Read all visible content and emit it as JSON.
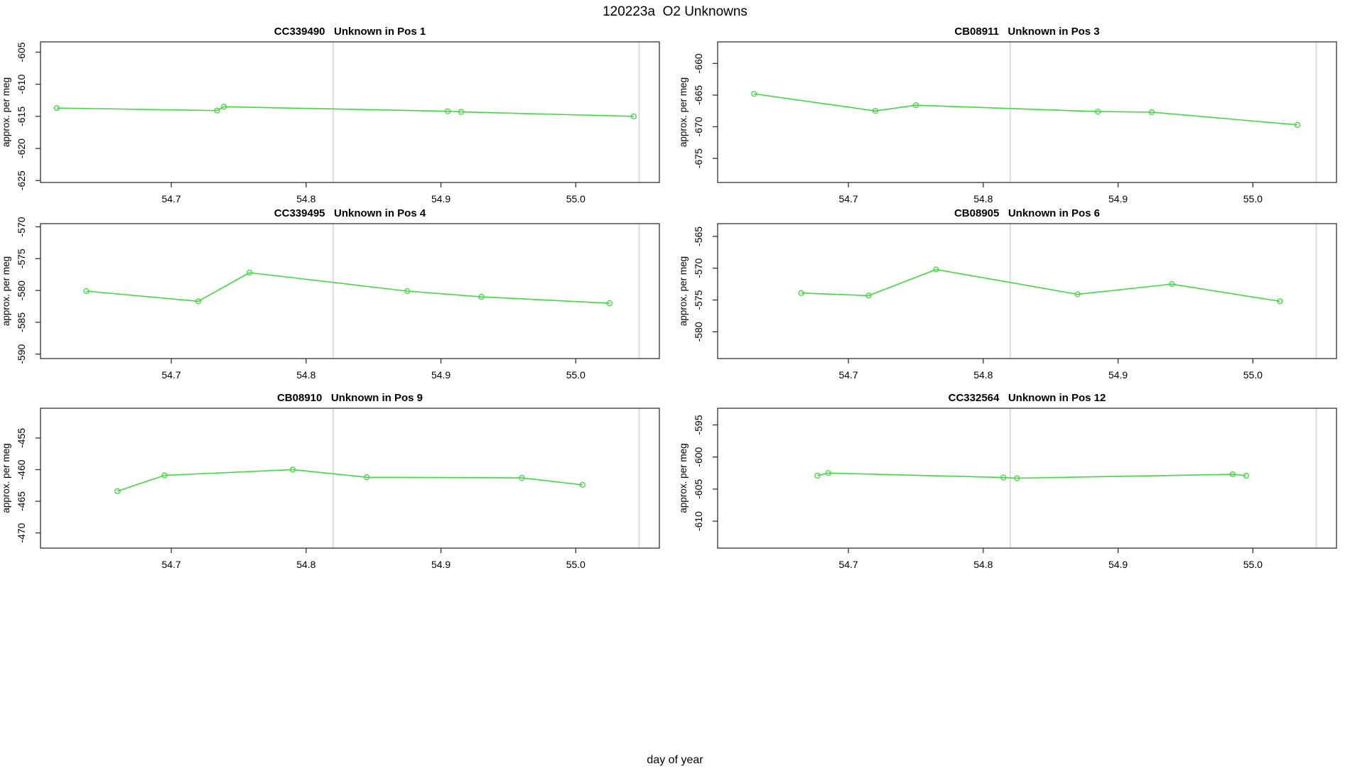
{
  "figure": {
    "title": "120223a  O2 Unknowns",
    "x_axis_label": "day of year",
    "background_color": "#ffffff",
    "series_color": "#3ddb3d",
    "reference_line_color": "#dbdbdb",
    "axis_color": "#333333",
    "text_color": "#000000"
  },
  "axes_shared": {
    "xlim": [
      54.603,
      55.062
    ],
    "xticks": [
      "54.7",
      "54.8",
      "54.9",
      "55.0"
    ],
    "xtick_values": [
      54.7,
      54.8,
      54.9,
      55.0
    ],
    "reference_vlines": [
      54.82,
      55.047
    ],
    "ylabel": "approx. per meg",
    "grid": false,
    "legend": "none",
    "marker": "open-circle"
  },
  "chart_data": [
    {
      "type": "line",
      "title": "CC339490   Unknown in Pos 1",
      "sample_id": "CC339490",
      "position_label": "Unknown in Pos 1",
      "x": [
        54.615,
        54.734,
        54.739,
        54.905,
        54.915,
        55.043
      ],
      "y": [
        -613.7,
        -614.1,
        -613.5,
        -614.2,
        -614.3,
        -615.0
      ],
      "ylim": [
        -625.3,
        -603.4
      ],
      "yticks": [
        -625,
        -620,
        -615,
        -610,
        -605
      ]
    },
    {
      "type": "line",
      "title": "CB08911   Unknown in Pos 3",
      "sample_id": "CB08911",
      "position_label": "Unknown in Pos 3",
      "x": [
        54.63,
        54.72,
        54.75,
        54.885,
        54.925,
        55.033
      ],
      "y": [
        -664.8,
        -667.5,
        -666.6,
        -667.6,
        -667.7,
        -669.7
      ],
      "ylim": [
        -678.8,
        -656.6
      ],
      "yticks": [
        -675,
        -670,
        -665,
        -660
      ]
    },
    {
      "type": "line",
      "title": "CC339495   Unknown in Pos 4",
      "sample_id": "CC339495",
      "position_label": "Unknown in Pos 4",
      "x": [
        54.637,
        54.72,
        54.758,
        54.875,
        54.93,
        55.025
      ],
      "y": [
        -580.1,
        -581.7,
        -577.2,
        -580.1,
        -581.0,
        -582.0
      ],
      "ylim": [
        -590.7,
        -569.5
      ],
      "yticks": [
        -590,
        -585,
        -580,
        -575,
        -570
      ]
    },
    {
      "type": "line",
      "title": "CB08905   Unknown in Pos 6",
      "sample_id": "CB08905",
      "position_label": "Unknown in Pos 6",
      "x": [
        54.665,
        54.715,
        54.765,
        54.87,
        54.94,
        55.02
      ],
      "y": [
        -573.9,
        -574.3,
        -570.2,
        -574.1,
        -572.5,
        -575.2
      ],
      "ylim": [
        -584.2,
        -563.0
      ],
      "yticks": [
        -580,
        -575,
        -570,
        -565
      ]
    },
    {
      "type": "line",
      "title": "CB08910   Unknown in Pos 9",
      "sample_id": "CB08910",
      "position_label": "Unknown in Pos 9",
      "x": [
        54.66,
        54.695,
        54.79,
        54.845,
        54.96,
        55.005
      ],
      "y": [
        -463.4,
        -460.9,
        -460.0,
        -461.2,
        -461.3,
        -462.4
      ],
      "ylim": [
        -472.4,
        -450.3
      ],
      "yticks": [
        -470,
        -465,
        -460,
        -455
      ]
    },
    {
      "type": "line",
      "title": "CC332564   Unknown in Pos 12",
      "sample_id": "CC332564",
      "position_label": "Unknown in Pos 12",
      "x": [
        54.677,
        54.685,
        54.815,
        54.825,
        54.985,
        54.995
      ],
      "y": [
        -602.9,
        -602.5,
        -603.2,
        -603.3,
        -602.7,
        -602.9
      ],
      "ylim": [
        -614.2,
        -592.4
      ],
      "yticks": [
        -610,
        -605,
        -600,
        -595
      ]
    }
  ]
}
